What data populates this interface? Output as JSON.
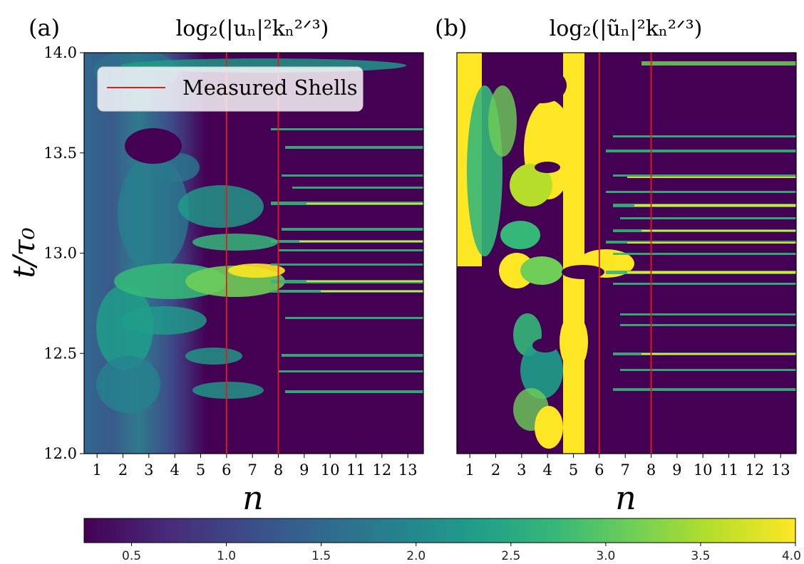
{
  "chart_data": [
    {
      "type": "heatmap",
      "panel_label": "(a)",
      "title": "log₂(|uₙ|²kₙ²ᐟ³)",
      "xlabel": "n",
      "ylabel": "t/τ₀",
      "x_ticks": [
        "1",
        "2",
        "3",
        "4",
        "5",
        "6",
        "7",
        "8",
        "9",
        "10",
        "11",
        "12",
        "13"
      ],
      "y_ticks": [
        "12.0",
        "12.5",
        "13.0",
        "13.5",
        "14.0"
      ],
      "xlim": [
        0.5,
        13.6
      ],
      "ylim": [
        12.0,
        14.0
      ],
      "measured_shells": [
        6,
        8
      ],
      "legend": {
        "label": "Measured Shells",
        "color": "#e41a1c",
        "position": "upper-left"
      }
    },
    {
      "type": "heatmap",
      "panel_label": "(b)",
      "title": "log₂(|ũₙ|²kₙ²ᐟ³)",
      "xlabel": "n",
      "ylabel": "",
      "x_ticks": [
        "1",
        "2",
        "3",
        "4",
        "5",
        "6",
        "7",
        "8",
        "9",
        "10",
        "11",
        "12",
        "13"
      ],
      "y_ticks": [],
      "xlim": [
        0.5,
        13.6
      ],
      "ylim": [
        12.0,
        14.0
      ],
      "measured_shells": [
        6,
        8
      ]
    }
  ],
  "colorbar": {
    "colormap": "viridis",
    "range": [
      0.25,
      4.0
    ],
    "ticks": [
      "0.5",
      "1.0",
      "1.5",
      "2.0",
      "2.5",
      "3.0",
      "3.5",
      "4.0"
    ],
    "colors": [
      "#440154",
      "#482878",
      "#3e4989",
      "#31688e",
      "#26828e",
      "#1f9e89",
      "#35b779",
      "#6ece58",
      "#b5de2b",
      "#fde725"
    ]
  }
}
